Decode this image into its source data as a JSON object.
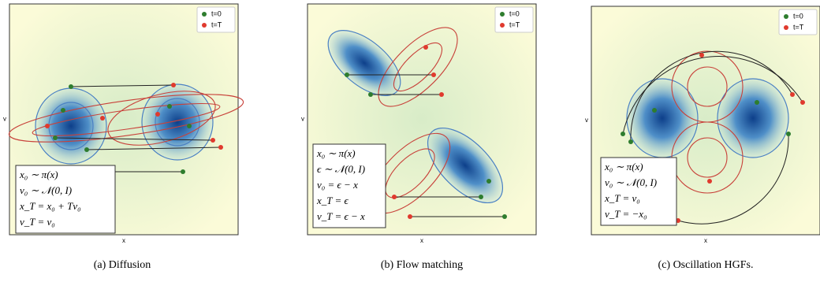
{
  "panels": [
    {
      "legend": [
        "t=0",
        "t=T"
      ],
      "x_label": "x",
      "y_label": "v",
      "equations": [
        "x₀ ∼ π(x)",
        "v₀ ∼ 𝒩(0, I)",
        "x_T = x₀ + Tv₀",
        "v_T = v₀"
      ],
      "caption": "(a) Diffusion"
    },
    {
      "legend": [
        "t=0",
        "t=T"
      ],
      "x_label": "x",
      "y_label": "v",
      "equations": [
        "x₀ ∼ π(x)",
        "ϵ ∼ 𝒩(0, I)",
        "v₀ = ϵ − x",
        "x_T = ϵ",
        "v_T = ϵ − x"
      ],
      "caption": "(b) Flow matching"
    },
    {
      "legend": [
        "t=0",
        "t=T"
      ],
      "x_label": "x",
      "y_label": "v",
      "equations": [
        "x₀ ∼ π(x)",
        "v₀ ∼ 𝒩(0, I)",
        "x_T = v₀",
        "v_T = −x₀"
      ],
      "caption": "(c) Oscillation HGFs."
    }
  ]
}
